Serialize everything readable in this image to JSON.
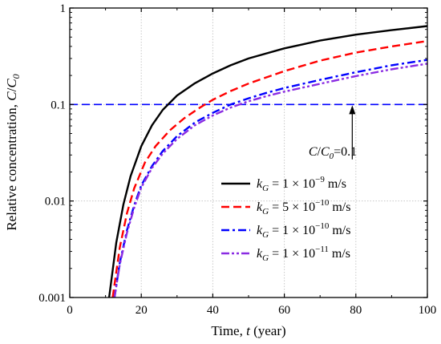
{
  "chart_data": {
    "type": "line",
    "x_scale": "linear",
    "y_scale": "log",
    "xlim": [
      0,
      100
    ],
    "ylim": [
      0.001,
      1
    ],
    "x_ticks": [
      0,
      20,
      40,
      60,
      80,
      100
    ],
    "x_tick_labels": [
      "0",
      "20",
      "40",
      "60",
      "80",
      "100"
    ],
    "y_ticks": [
      0.001,
      0.01,
      0.1,
      1
    ],
    "y_tick_labels": [
      "0.001",
      "0.01",
      "0.1",
      "1"
    ],
    "xlabel": "Time, t (year)",
    "ylabel": "Relative concentration, C/C0",
    "grid": "dotted",
    "legend_position": "center-right",
    "series": [
      {
        "name": "kG = 1 × 10^-9 m/s",
        "color": "#000000",
        "dash": "solid",
        "x": [
          11,
          13,
          15,
          17,
          20,
          23,
          26,
          30,
          35,
          40,
          45,
          50,
          60,
          70,
          80,
          90,
          100
        ],
        "y": [
          0.001,
          0.0037,
          0.0092,
          0.018,
          0.037,
          0.061,
          0.088,
          0.124,
          0.166,
          0.21,
          0.255,
          0.3,
          0.382,
          0.46,
          0.53,
          0.59,
          0.65
        ]
      },
      {
        "name": "kG = 5 × 10^-10 m/s",
        "color": "#ff0000",
        "dash": "dash",
        "x": [
          12,
          14,
          16,
          18,
          21,
          24,
          28,
          32,
          36,
          40,
          45,
          50,
          60,
          70,
          80,
          90,
          100
        ],
        "y": [
          0.001,
          0.0033,
          0.0075,
          0.0135,
          0.025,
          0.037,
          0.054,
          0.072,
          0.091,
          0.112,
          0.138,
          0.165,
          0.222,
          0.285,
          0.345,
          0.4,
          0.455
        ]
      },
      {
        "name": "kG = 1 × 10^-10 m/s",
        "color": "#0000ff",
        "dash": "dashdot",
        "x": [
          12.5,
          14,
          16,
          18,
          20,
          23,
          26,
          30,
          35,
          40,
          45,
          50,
          55,
          60,
          70,
          80,
          90,
          100
        ],
        "y": [
          0.001,
          0.0023,
          0.005,
          0.009,
          0.0145,
          0.023,
          0.033,
          0.047,
          0.065,
          0.082,
          0.1,
          0.116,
          0.132,
          0.148,
          0.18,
          0.216,
          0.255,
          0.29
        ]
      },
      {
        "name": "kG = 1 × 10^-11 m/s",
        "color": "#8a2be2",
        "dash": "dashdotdot",
        "x": [
          12.5,
          14,
          16,
          18,
          20,
          23,
          26,
          30,
          35,
          40,
          45,
          50,
          55,
          60,
          70,
          80,
          90,
          100
        ],
        "y": [
          0.001,
          0.0022,
          0.0047,
          0.0085,
          0.0138,
          0.022,
          0.031,
          0.044,
          0.061,
          0.077,
          0.093,
          0.108,
          0.122,
          0.136,
          0.164,
          0.197,
          0.232,
          0.265
        ]
      }
    ],
    "reference_line": {
      "y": 0.1,
      "color": "#0000ff",
      "dash": "dash",
      "label": "C/C0=0.1"
    },
    "annotation_arrow": {
      "from": [
        79,
        0.027
      ],
      "to": [
        79,
        0.098
      ]
    }
  },
  "labels": {
    "xlabel_text": "Time, ",
    "xlabel_var": "t",
    "xlabel_unit": " (year)",
    "ylabel_text": "Relative concentration, ",
    "ylabel_var": "C",
    "ylabel_slash": "/",
    "ylabel_var2": "C",
    "ylabel_sub": "0",
    "annot_var": "C",
    "annot_slash": "/",
    "annot_var2": "C",
    "annot_sub": "0",
    "annot_value": "=0.1",
    "legend": [
      {
        "sym": "k",
        "sub": "G",
        "text": " = 1 × 10",
        "sup": "−9",
        "unit": " m/s"
      },
      {
        "sym": "k",
        "sub": "G",
        "text": " = 5 × 10",
        "sup": "−10",
        "unit": " m/s"
      },
      {
        "sym": "k",
        "sub": "G",
        "text": " = 1 × 10",
        "sup": "−10",
        "unit": " m/s"
      },
      {
        "sym": "k",
        "sub": "G",
        "text": " = 1 × 10",
        "sup": "−11",
        "unit": " m/s"
      }
    ]
  }
}
